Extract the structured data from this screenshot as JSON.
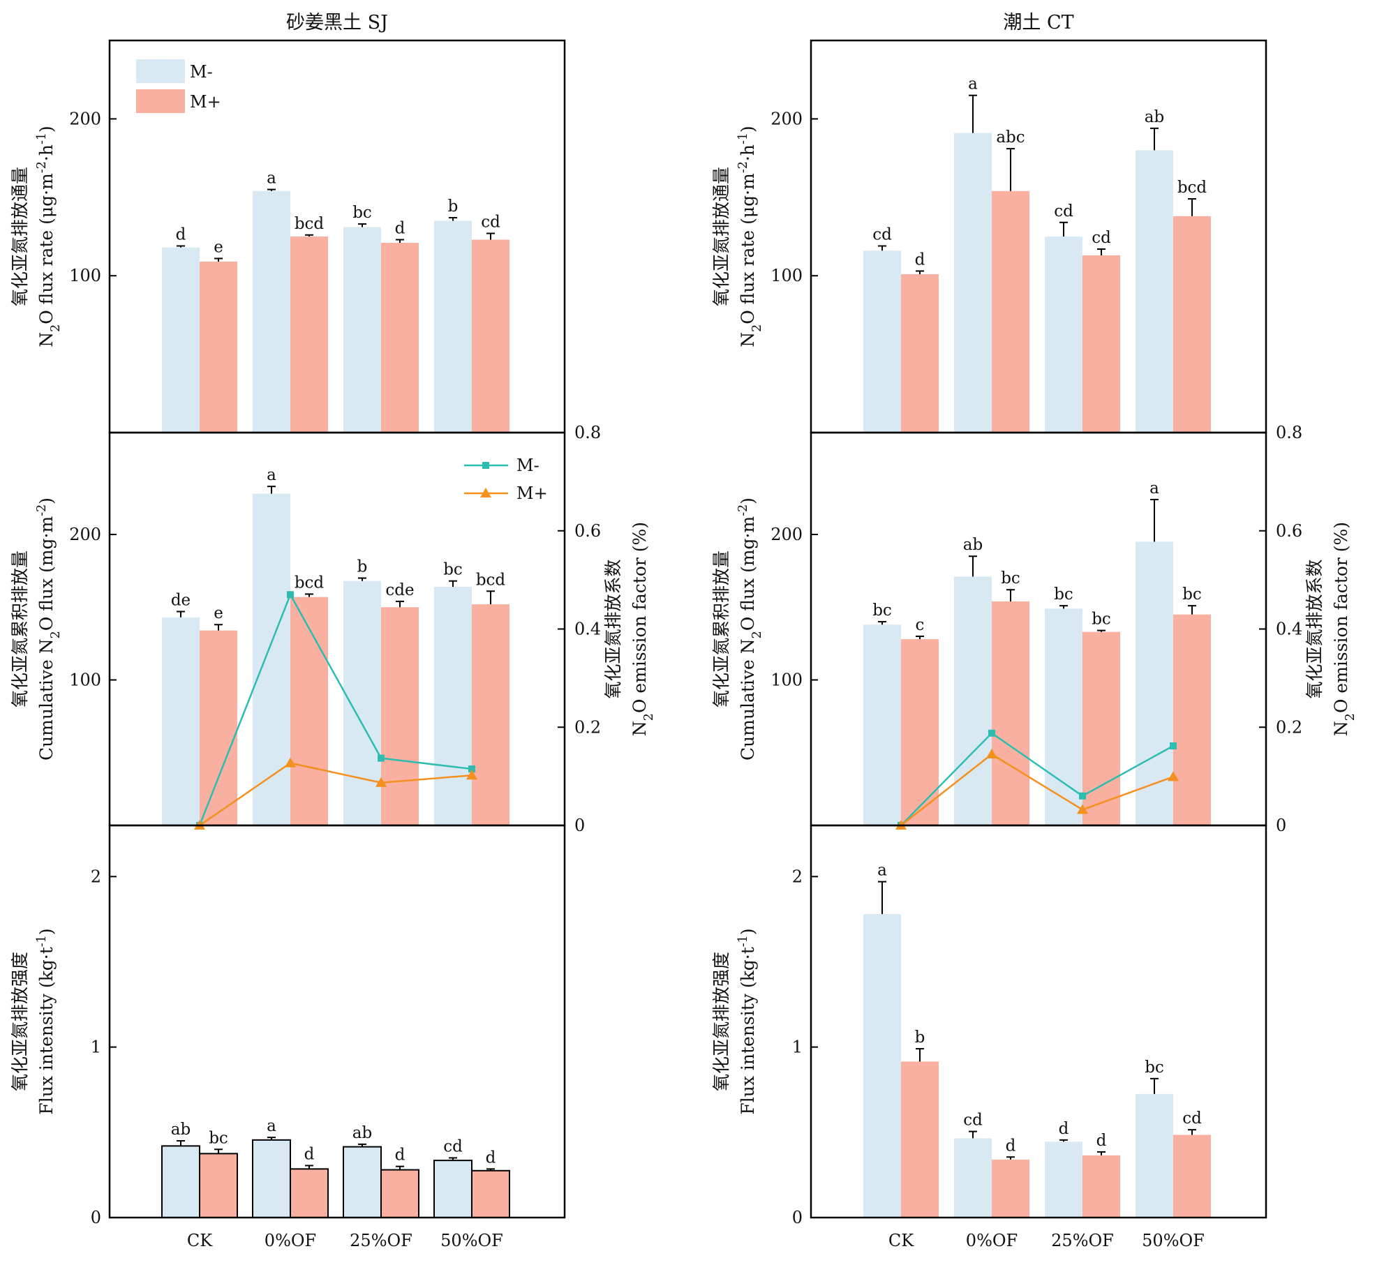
{
  "colors": {
    "m_minus": "#d8e9f4",
    "m_plus": "#f9b0a1",
    "line_m_minus": "#2dbcb0",
    "line_m_plus": "#f4901e",
    "axis": "#000000"
  },
  "chart_data": [
    {
      "type": "bar",
      "panel": "SJ-flux-rate",
      "title": "砂姜黑土 SJ",
      "ylabel": [
        "氧化亚氮排放通量",
        "N2O flux rate (μg·m-2·h-1)"
      ],
      "ylim": [
        0,
        250
      ],
      "yticks": [
        100,
        200
      ],
      "legend": [
        "M-",
        "M+"
      ],
      "legend_position": "top-left",
      "categories": [
        "CK",
        "0%OF",
        "25%OF",
        "50%OF"
      ],
      "series": [
        {
          "name": "M-",
          "values": [
            118,
            154,
            131,
            135
          ],
          "err": [
            1,
            1,
            2,
            2
          ],
          "letters": [
            "d",
            "a",
            "bc",
            "b"
          ]
        },
        {
          "name": "M+",
          "values": [
            109,
            125,
            121,
            123
          ],
          "err": [
            2,
            1,
            2,
            4
          ],
          "letters": [
            "e",
            "bcd",
            "d",
            "cd"
          ]
        }
      ]
    },
    {
      "type": "bar",
      "panel": "CT-flux-rate",
      "title": "潮土 CT",
      "ylabel": [
        "氧化亚氮排放通量",
        "N2O flux rate (μg·m-2·h-1)"
      ],
      "ylim": [
        0,
        250
      ],
      "yticks": [
        100,
        200
      ],
      "categories": [
        "CK",
        "0%OF",
        "25%OF",
        "50%OF"
      ],
      "series": [
        {
          "name": "M-",
          "values": [
            116,
            191,
            125,
            180
          ],
          "err": [
            3,
            24,
            9,
            14
          ],
          "letters": [
            "cd",
            "a",
            "cd",
            "ab"
          ]
        },
        {
          "name": "M+",
          "values": [
            101,
            154,
            113,
            138
          ],
          "err": [
            2,
            27,
            4,
            11
          ],
          "letters": [
            "d",
            "abc",
            "cd",
            "bcd"
          ]
        }
      ]
    },
    {
      "type": "bar",
      "panel": "SJ-cumulative",
      "ylabel": [
        "氧化亚氮累积排放量",
        "Cumulative N2O flux (mg·m-2)"
      ],
      "ylim": [
        0,
        270
      ],
      "yticks": [
        100,
        200
      ],
      "y2label": [
        "氧化亚氮排放系数",
        "N2O emission factor (%)"
      ],
      "y2lim": [
        0,
        0.8
      ],
      "y2ticks": [
        0,
        0.2,
        0.4,
        0.6,
        0.8
      ],
      "legend": [
        "M-",
        "M+"
      ],
      "legend_position": "top-right",
      "categories": [
        "CK",
        "0%OF",
        "25%OF",
        "50%OF"
      ],
      "series": [
        {
          "name": "M-",
          "values": [
            143,
            228,
            168,
            164
          ],
          "err": [
            4,
            5,
            2,
            4
          ],
          "letters": [
            "de",
            "a",
            "b",
            "bc"
          ]
        },
        {
          "name": "M+",
          "values": [
            134,
            157,
            150,
            152
          ],
          "err": [
            4,
            2,
            4,
            9
          ],
          "letters": [
            "e",
            "bcd",
            "cde",
            "bcd"
          ]
        }
      ],
      "lines": [
        {
          "name": "M-",
          "x": [
            "CK",
            "0%OF",
            "25%OF",
            "50%OF"
          ],
          "values": [
            0,
            0.47,
            0.137,
            0.115
          ]
        },
        {
          "name": "M+",
          "x": [
            "CK",
            "0%OF",
            "25%OF",
            "50%OF"
          ],
          "values": [
            0,
            0.127,
            0.087,
            0.102
          ]
        }
      ]
    },
    {
      "type": "bar",
      "panel": "CT-cumulative",
      "ylabel": [
        "氧化亚氮累积排放量",
        "Cumulative N2O flux (mg·m-2)"
      ],
      "ylim": [
        0,
        270
      ],
      "yticks": [
        100,
        200
      ],
      "y2label": [
        "氧化亚氮排放系数",
        "N2O emission factor (%)"
      ],
      "y2lim": [
        0,
        0.8
      ],
      "y2ticks": [
        0,
        0.2,
        0.4,
        0.6,
        0.8
      ],
      "categories": [
        "CK",
        "0%OF",
        "25%OF",
        "50%OF"
      ],
      "series": [
        {
          "name": "M-",
          "values": [
            138,
            171,
            149,
            195
          ],
          "err": [
            2,
            14,
            2,
            29
          ],
          "letters": [
            "bc",
            "ab",
            "bc",
            "a"
          ]
        },
        {
          "name": "M+",
          "values": [
            128,
            154,
            133,
            145
          ],
          "err": [
            2,
            8,
            1,
            6
          ],
          "letters": [
            "c",
            "bc",
            "bc",
            "bc"
          ]
        }
      ],
      "lines": [
        {
          "name": "M-",
          "x": [
            "CK",
            "0%OF",
            "25%OF",
            "50%OF"
          ],
          "values": [
            0,
            0.188,
            0.06,
            0.162
          ]
        },
        {
          "name": "M+",
          "x": [
            "CK",
            "0%OF",
            "25%OF",
            "50%OF"
          ],
          "values": [
            0,
            0.145,
            0.032,
            0.099
          ]
        }
      ]
    },
    {
      "type": "bar",
      "panel": "SJ-intensity",
      "ylabel": [
        "氧化亚氮排放强度",
        "Flux intensity (kg·t-1)"
      ],
      "ylim": [
        0,
        2.3
      ],
      "yticks": [
        0,
        1,
        2
      ],
      "categories": [
        "CK",
        "0%OF",
        "25%OF",
        "50%OF"
      ],
      "series": [
        {
          "name": "M-",
          "values": [
            0.42,
            0.455,
            0.415,
            0.335
          ],
          "err": [
            0.03,
            0.015,
            0.015,
            0.015
          ],
          "letters": [
            "ab",
            "a",
            "ab",
            "cd"
          ]
        },
        {
          "name": "M+",
          "values": [
            0.375,
            0.285,
            0.28,
            0.275
          ],
          "err": [
            0.025,
            0.02,
            0.02,
            0.01
          ],
          "letters": [
            "bc",
            "d",
            "d",
            "d"
          ]
        }
      ]
    },
    {
      "type": "bar",
      "panel": "CT-intensity",
      "ylabel": [
        "氧化亚氮排放强度",
        "Flux intensity (kg·t-1)"
      ],
      "ylim": [
        0,
        2.3
      ],
      "yticks": [
        0,
        1,
        2
      ],
      "categories": [
        "CK",
        "0%OF",
        "25%OF",
        "50%OF"
      ],
      "series": [
        {
          "name": "M-",
          "values": [
            1.78,
            0.465,
            0.445,
            0.725
          ],
          "err": [
            0.19,
            0.04,
            0.01,
            0.09
          ],
          "letters": [
            "a",
            "cd",
            "d",
            "bc"
          ]
        },
        {
          "name": "M+",
          "values": [
            0.915,
            0.34,
            0.365,
            0.485
          ],
          "err": [
            0.075,
            0.015,
            0.02,
            0.03
          ],
          "letters": [
            "b",
            "d",
            "d",
            "cd"
          ]
        }
      ]
    }
  ]
}
